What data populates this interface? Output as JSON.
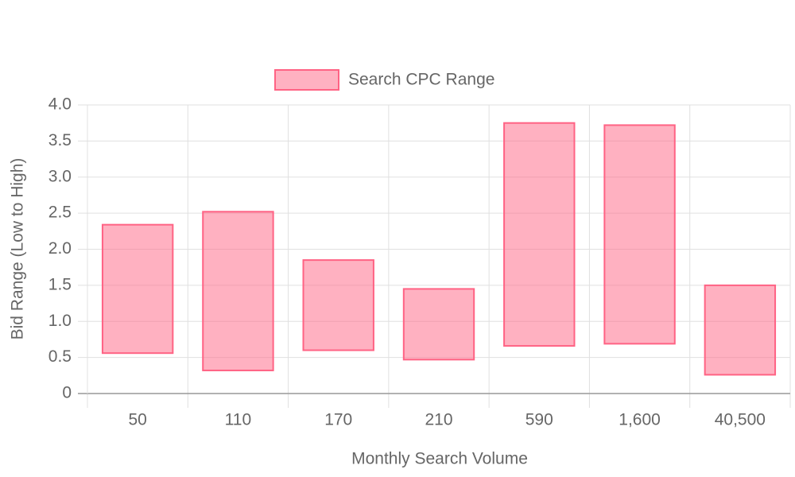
{
  "chart_data": {
    "type": "floating-bar",
    "x_label": "Monthly Search Volume",
    "y_label": "Bid Range (Low to High)",
    "categories": [
      "50",
      "110",
      "170",
      "210",
      "590",
      "1,600",
      "40,500"
    ],
    "series": [
      {
        "name": "Search CPC Range",
        "color": "#ff6384",
        "low": [
          0.56,
          0.32,
          0.6,
          0.47,
          0.66,
          0.69,
          0.26
        ],
        "high": [
          2.34,
          2.52,
          1.85,
          1.45,
          3.75,
          3.72,
          1.5
        ]
      }
    ],
    "ylim": [
      0,
      4
    ],
    "yticks": [
      0,
      0.5,
      {
        "value": 1,
        "label": "1.0"
      },
      1.5,
      {
        "value": 2,
        "label": "2.0"
      },
      2.5,
      {
        "value": 3,
        "label": "3.0"
      },
      3.5,
      {
        "value": 4,
        "label": "4.0"
      }
    ],
    "grid": true,
    "legend": "top"
  }
}
